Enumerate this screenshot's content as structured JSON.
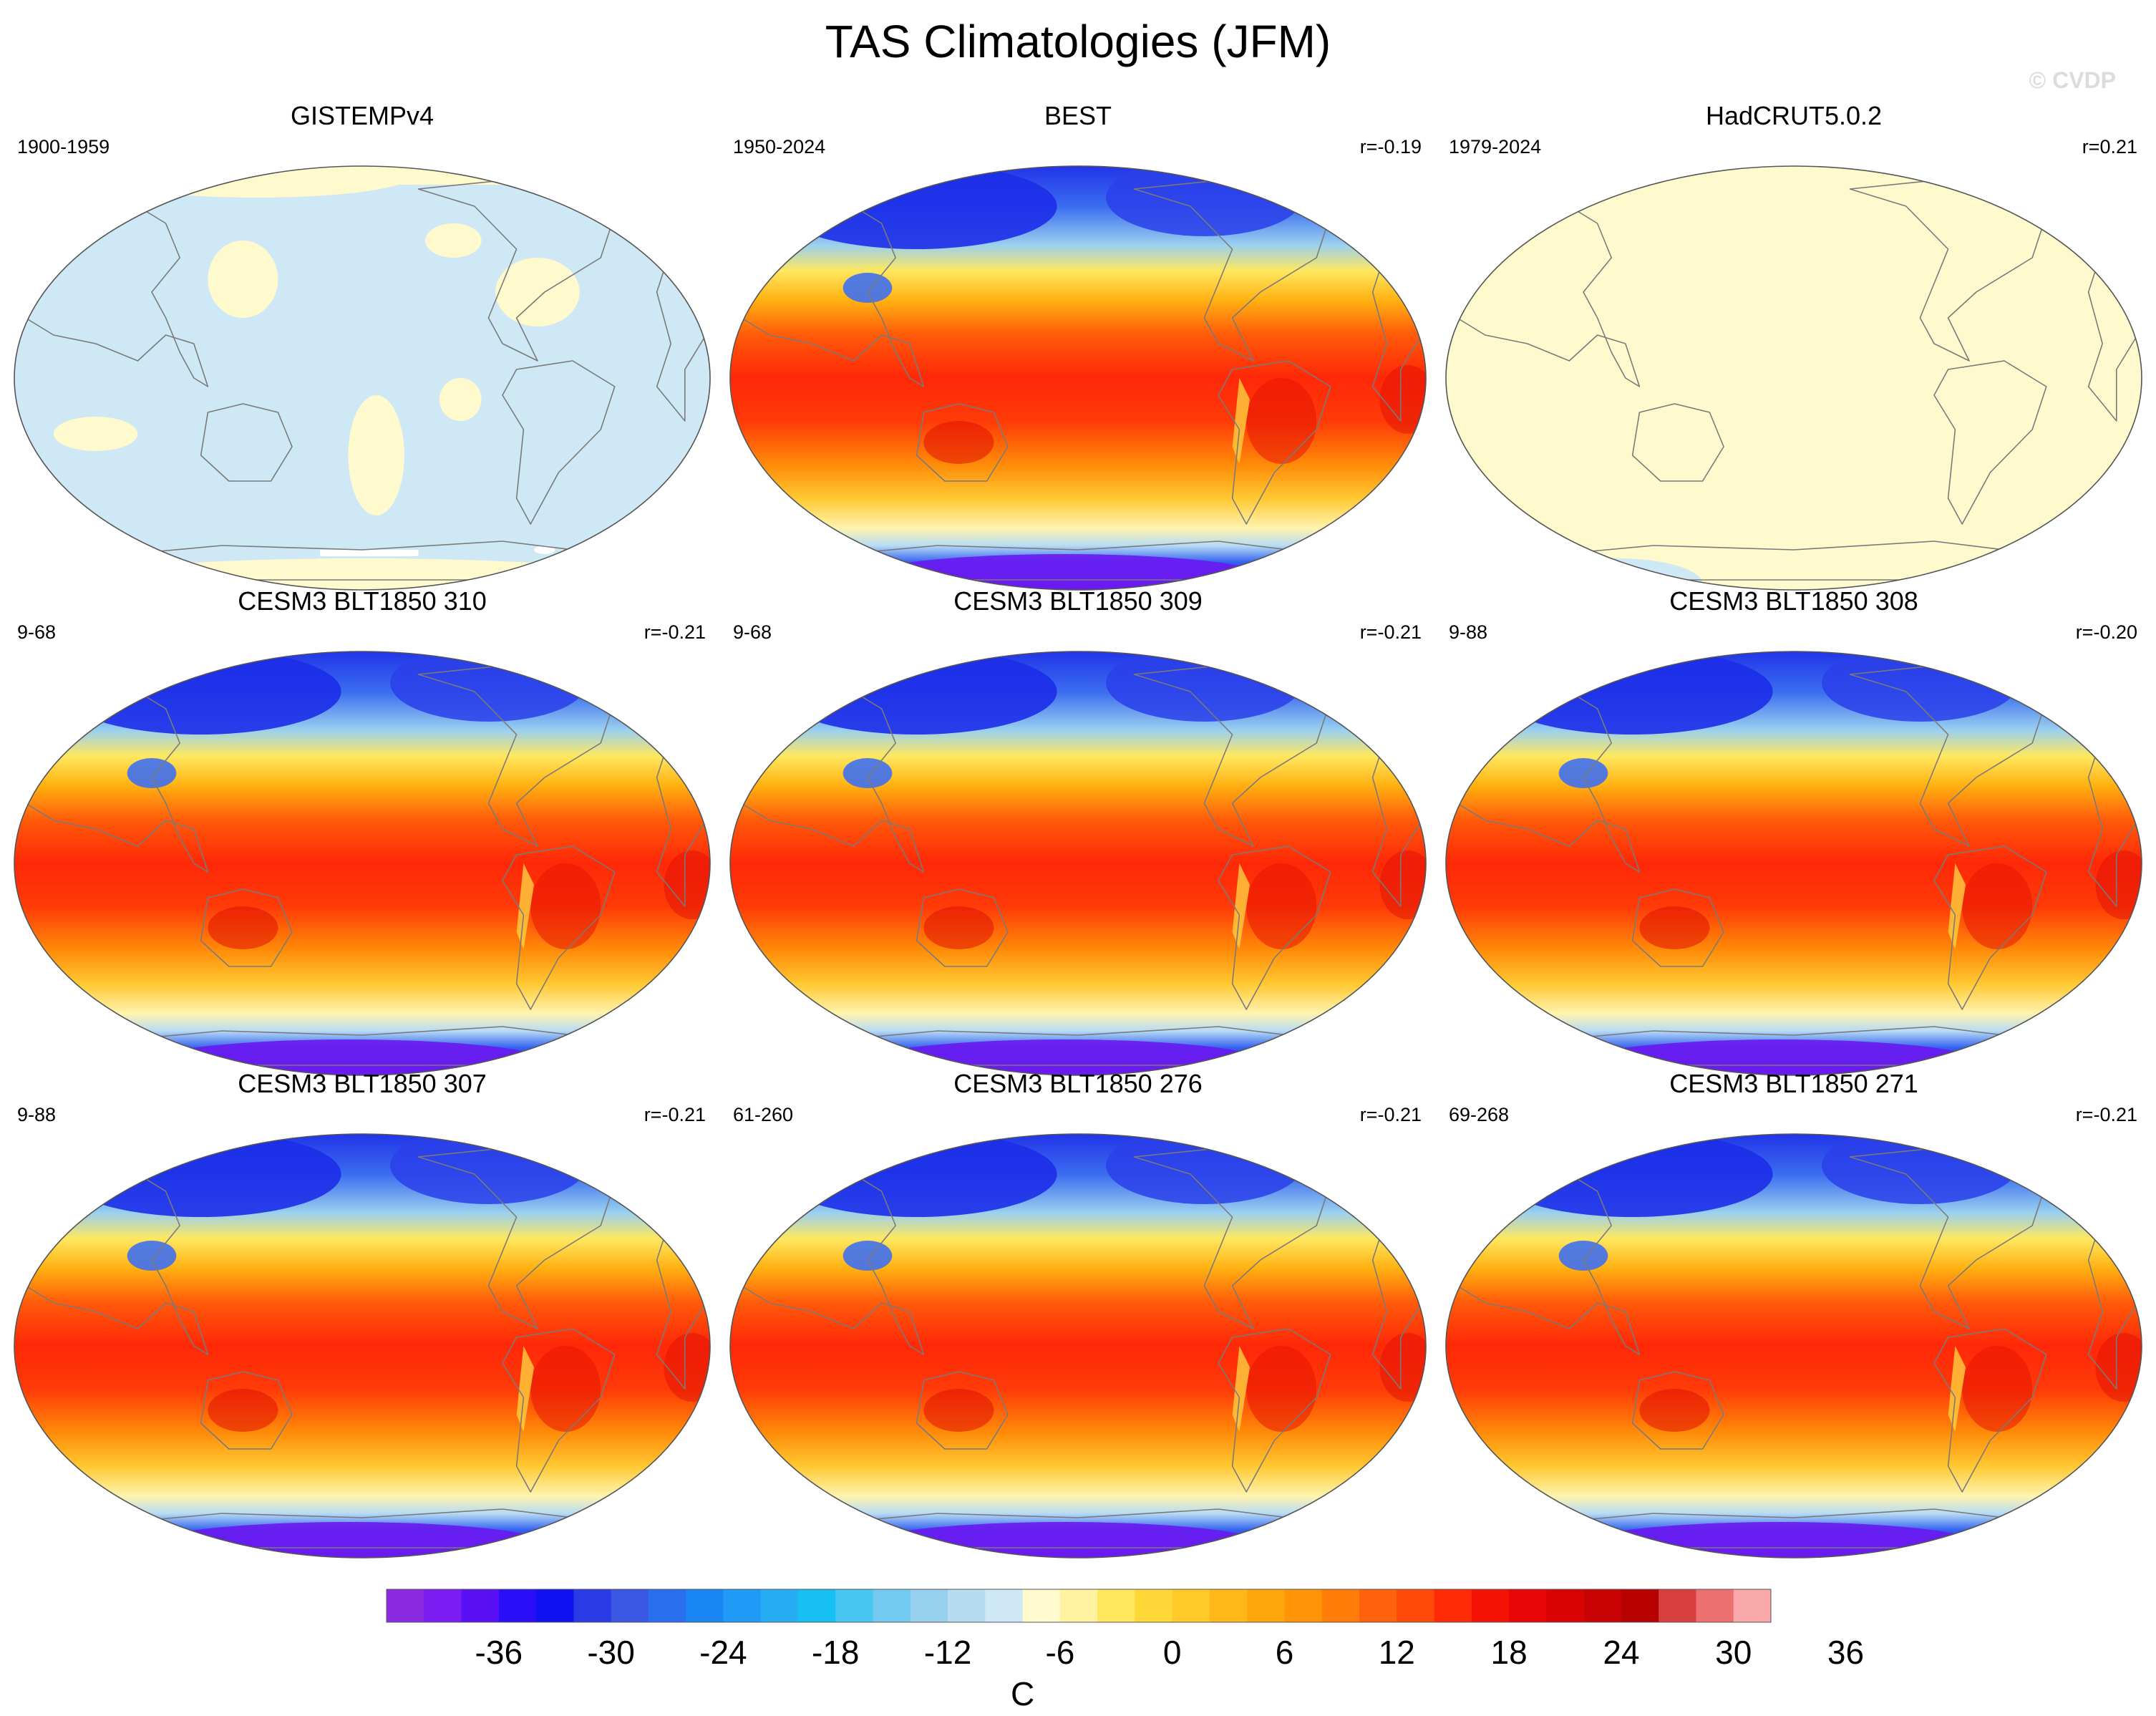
{
  "title": "TAS Climatologies (JFM)",
  "watermark": "© CVDP",
  "panels": [
    {
      "title": "GISTEMPv4",
      "period": "1900-1959",
      "corr": "",
      "style": "gistemp"
    },
    {
      "title": "BEST",
      "period": "1950-2024",
      "corr": "r=-0.19",
      "style": "field"
    },
    {
      "title": "HadCRUT5.0.2",
      "period": "1979-2024",
      "corr": "r=0.21",
      "style": "hadcrut"
    },
    {
      "title": "CESM3 BLT1850 310",
      "period": "9-68",
      "corr": "r=-0.21",
      "style": "field"
    },
    {
      "title": "CESM3 BLT1850 309",
      "period": "9-68",
      "corr": "r=-0.21",
      "style": "field"
    },
    {
      "title": "CESM3 BLT1850 308",
      "period": "9-88",
      "corr": "r=-0.20",
      "style": "field"
    },
    {
      "title": "CESM3 BLT1850 307",
      "period": "9-88",
      "corr": "r=-0.21",
      "style": "field"
    },
    {
      "title": "CESM3 BLT1850 276",
      "period": "61-260",
      "corr": "r=-0.21",
      "style": "field"
    },
    {
      "title": "CESM3 BLT1850 271",
      "period": "69-268",
      "corr": "r=-0.21",
      "style": "field"
    }
  ],
  "colorbar": {
    "unit": "C",
    "tick_labels": [
      "-36",
      "-30",
      "-24",
      "-18",
      "-12",
      "-6",
      "0",
      "6",
      "12",
      "18",
      "24",
      "30",
      "36"
    ],
    "colors": [
      "#8a2be2",
      "#7a1cf2",
      "#5a10f5",
      "#2a0ef8",
      "#1010f0",
      "#2a3ae6",
      "#3a58e4",
      "#2a70ee",
      "#1a86f6",
      "#1f9af6",
      "#26aef4",
      "#16c0f4",
      "#48c6f2",
      "#72caf0",
      "#96d0ee",
      "#b6dcf2",
      "#cfe8f6",
      "#fffacd",
      "#fff2a0",
      "#ffe65a",
      "#ffd838",
      "#ffc928",
      "#ffb818",
      "#ffa60c",
      "#ff9406",
      "#ff7c08",
      "#ff620a",
      "#ff4a0a",
      "#ff2a06",
      "#f51204",
      "#e80606",
      "#d80404",
      "#c80202",
      "#b80202",
      "#d83e3e",
      "#ec7070",
      "#f8a8a8"
    ]
  }
}
